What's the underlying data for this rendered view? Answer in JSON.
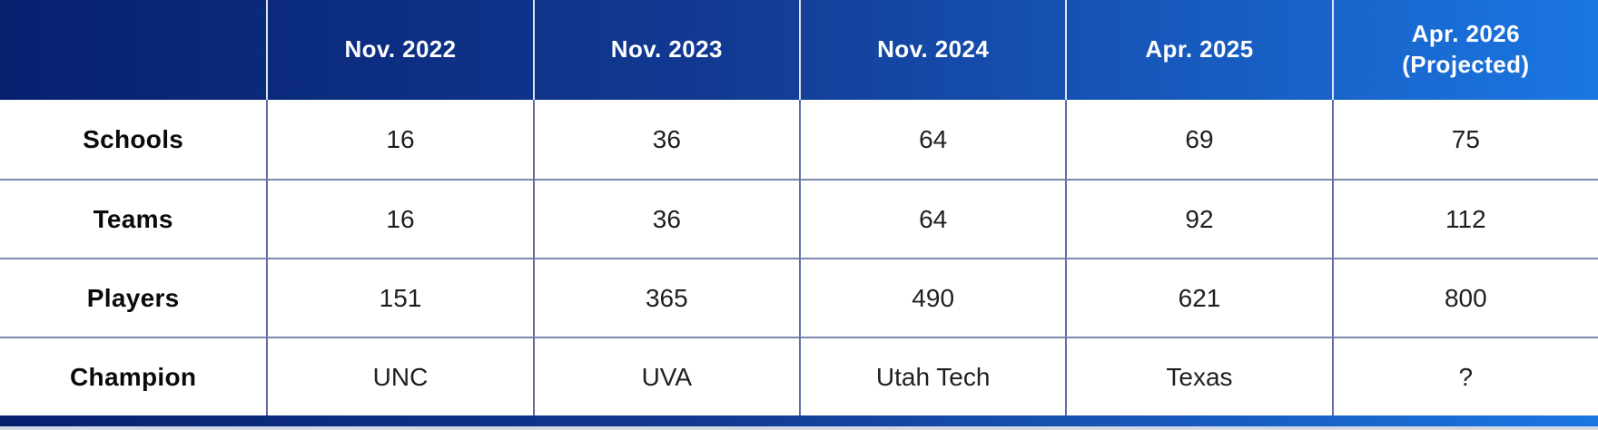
{
  "table": {
    "header": {
      "corner": "",
      "columns": [
        {
          "label": "Nov. 2022"
        },
        {
          "label": "Nov. 2023"
        },
        {
          "label": "Nov. 2024"
        },
        {
          "label": "Apr. 2025"
        },
        {
          "label": "Apr. 2026",
          "sublabel": "(Projected)"
        }
      ]
    },
    "rows": [
      {
        "label": "Schools",
        "values": [
          "16",
          "36",
          "64",
          "69",
          "75"
        ]
      },
      {
        "label": "Teams",
        "values": [
          "16",
          "36",
          "64",
          "92",
          "112"
        ]
      },
      {
        "label": "Players",
        "values": [
          "151",
          "365",
          "490",
          "621",
          "800"
        ]
      },
      {
        "label": "Champion",
        "values": [
          "UNC",
          "UVA",
          "Utah Tech",
          "Texas",
          "?"
        ]
      }
    ]
  },
  "chart_data": {
    "type": "table",
    "columns": [
      "",
      "Nov. 2022",
      "Nov. 2023",
      "Nov. 2024",
      "Apr. 2025",
      "Apr. 2026 (Projected)"
    ],
    "rows": [
      [
        "Schools",
        16,
        36,
        64,
        69,
        75
      ],
      [
        "Teams",
        16,
        36,
        64,
        92,
        112
      ],
      [
        "Players",
        151,
        365,
        490,
        621,
        800
      ],
      [
        "Champion",
        "UNC",
        "UVA",
        "Utah Tech",
        "Texas",
        "?"
      ]
    ]
  },
  "colors": {
    "gradient_start": "#06206e",
    "gradient_end": "#1b76e2",
    "divider_vertical": "#5f6da5",
    "divider_horizontal": "#7e89ae",
    "header_text": "#ffffff",
    "body_text": "#1f1f1f"
  }
}
